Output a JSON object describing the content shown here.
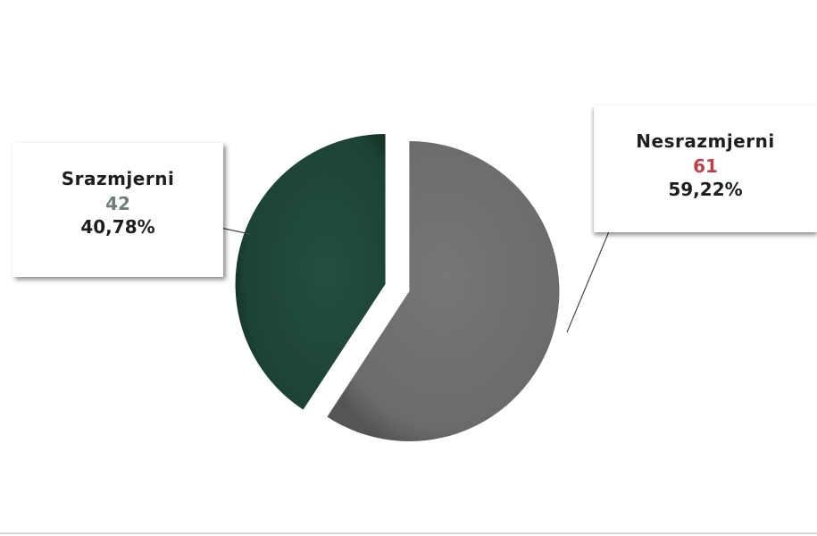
{
  "chart_data": {
    "type": "pie",
    "slices": [
      {
        "label": "Nesrazmjerni",
        "value": 61,
        "percent_label": "59,22%",
        "color": "#6e6e6e",
        "value_color": "#c0404a"
      },
      {
        "label": "Srazmjerni",
        "value": 42,
        "percent_label": "40,78%",
        "color": "#1f4a3c",
        "value_color": "#6f7f78"
      }
    ],
    "exploded": true,
    "legend": "none"
  }
}
